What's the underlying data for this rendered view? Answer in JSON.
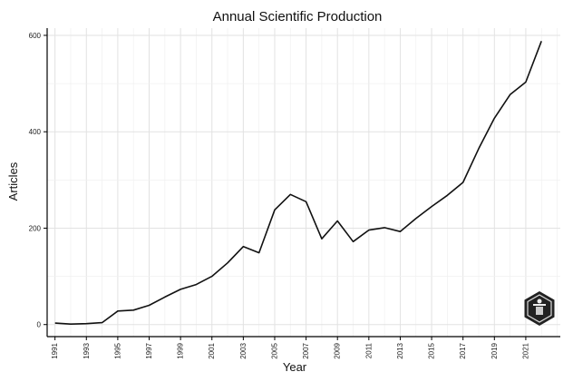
{
  "chart_data": {
    "type": "line",
    "title": "Annual Scientific Production",
    "xlabel": "Year",
    "ylabel": "Articles",
    "xlim": [
      1990.5,
      2023.2
    ],
    "ylim": [
      -25,
      615
    ],
    "x_ticks": [
      1991,
      1993,
      1995,
      1997,
      1999,
      2001,
      2003,
      2005,
      2007,
      2009,
      2011,
      2013,
      2015,
      2017,
      2019,
      2021
    ],
    "y_ticks": [
      0,
      200,
      400,
      600
    ],
    "grid": true,
    "legend": "none",
    "series": [
      {
        "x": [
          1991,
          1992,
          1993,
          1994,
          1995,
          1996,
          1997,
          1998,
          1999,
          2000,
          2001,
          2002,
          2003,
          2004,
          2005,
          2006,
          2007,
          2008,
          2009,
          2010,
          2011,
          2012,
          2013,
          2014,
          2015,
          2016,
          2017,
          2018,
          2019,
          2020,
          2021,
          2022
        ],
        "values": [
          3,
          1,
          2,
          4,
          28,
          30,
          40,
          57,
          73,
          83,
          100,
          128,
          162,
          149,
          238,
          270,
          255,
          178,
          215,
          172,
          196,
          201,
          193,
          220,
          245,
          268,
          295,
          365,
          428,
          477,
          503,
          588
        ]
      }
    ],
    "colors": {
      "line": "#111111",
      "grid": "#e2e2e2",
      "axis": "#000000"
    }
  },
  "logo": {
    "name": "bibliometrix-logo"
  }
}
